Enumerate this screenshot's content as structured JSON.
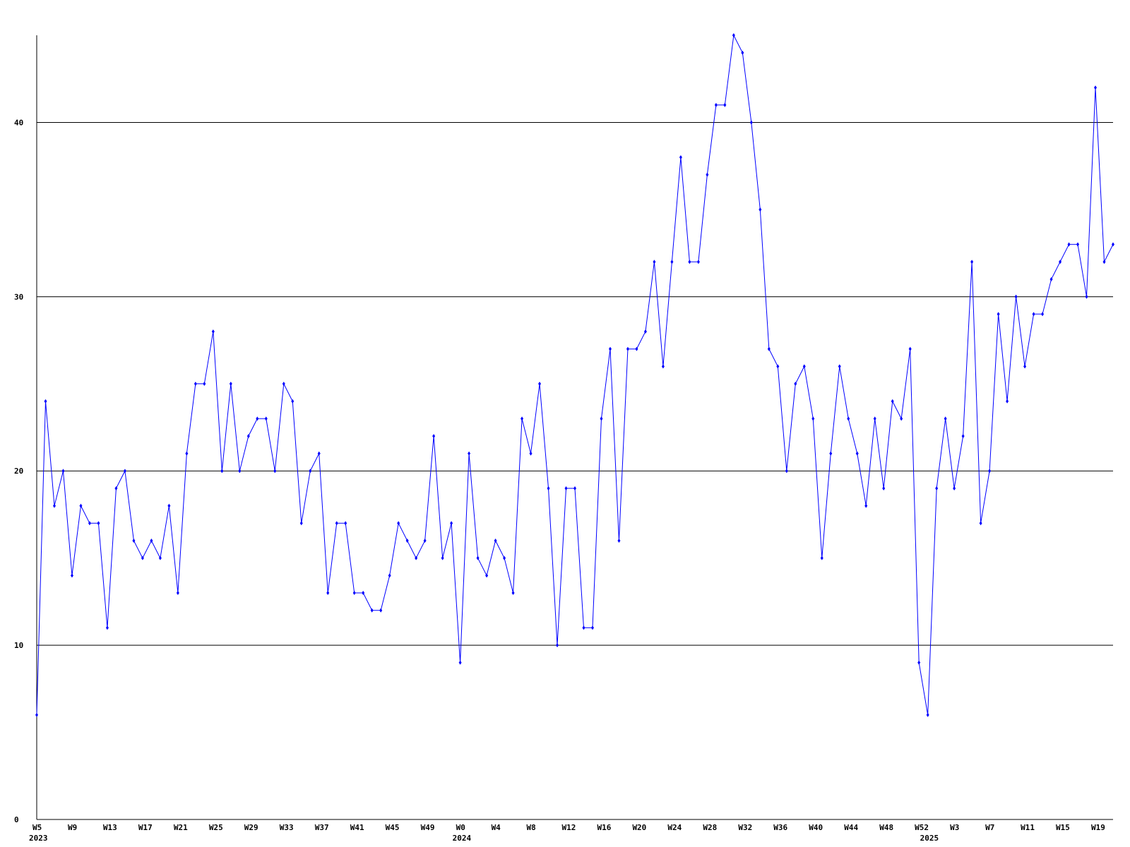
{
  "chart_data": {
    "type": "line",
    "categories": [
      "W5",
      null,
      null,
      null,
      "W9",
      null,
      null,
      null,
      "W13",
      null,
      null,
      null,
      "W17",
      null,
      null,
      null,
      "W21",
      null,
      null,
      null,
      "W25",
      null,
      null,
      null,
      "W29",
      null,
      null,
      null,
      "W33",
      null,
      null,
      null,
      "W37",
      null,
      null,
      null,
      "W41",
      null,
      null,
      null,
      "W45",
      null,
      null,
      null,
      "W49",
      null,
      null,
      null,
      "W0",
      null,
      null,
      null,
      "W4",
      null,
      null,
      null,
      "W8",
      null,
      null,
      null,
      "W12",
      null,
      null,
      null,
      "W16",
      null,
      null,
      null,
      "W20",
      null,
      null,
      null,
      "W24",
      null,
      null,
      null,
      "W28",
      null,
      null,
      null,
      "W32",
      null,
      null,
      null,
      "W36",
      null,
      null,
      null,
      "W40",
      null,
      null,
      null,
      "W44",
      null,
      null,
      null,
      "W48",
      null,
      null,
      null,
      "W52",
      null,
      null,
      null,
      "W3",
      null,
      null,
      null,
      "W7",
      null,
      null,
      null,
      "W11",
      null,
      null,
      null,
      "W15",
      null,
      null,
      null,
      "W19",
      null,
      null
    ],
    "category_years": [
      "2023",
      null,
      null,
      null,
      null,
      null,
      null,
      null,
      null,
      null,
      null,
      null,
      null,
      null,
      null,
      null,
      null,
      null,
      null,
      null,
      null,
      null,
      null,
      null,
      null,
      null,
      null,
      null,
      null,
      null,
      null,
      null,
      null,
      null,
      null,
      null,
      null,
      null,
      null,
      null,
      null,
      null,
      null,
      null,
      null,
      null,
      null,
      null,
      "2024",
      null,
      null,
      null,
      null,
      null,
      null,
      null,
      null,
      null,
      null,
      null,
      null,
      null,
      null,
      null,
      null,
      null,
      null,
      null,
      null,
      null,
      null,
      null,
      null,
      null,
      null,
      null,
      null,
      null,
      null,
      null,
      null,
      null,
      null,
      null,
      null,
      null,
      null,
      null,
      null,
      null,
      null,
      null,
      null,
      null,
      null,
      null,
      null,
      null,
      null,
      null,
      null,
      "2025",
      null,
      null,
      null,
      null,
      null,
      null,
      null,
      null,
      null,
      null,
      null,
      null,
      null,
      null,
      null,
      null,
      null,
      null,
      null,
      null,
      null
    ],
    "series": [
      {
        "color": "#0000ff",
        "values": [
          6,
          24,
          18,
          20,
          14,
          18,
          17,
          17,
          11,
          19,
          20,
          16,
          15,
          16,
          15,
          18,
          13,
          21,
          25,
          25,
          28,
          20,
          25,
          20,
          22,
          23,
          23,
          20,
          25,
          24,
          17,
          20,
          21,
          13,
          17,
          17,
          13,
          13,
          12,
          12,
          14,
          17,
          16,
          15,
          16,
          22,
          15,
          17,
          9,
          21,
          15,
          14,
          16,
          15,
          13,
          23,
          21,
          25,
          19,
          10,
          19,
          19,
          11,
          11,
          23,
          27,
          16,
          27,
          27,
          28,
          32,
          26,
          32,
          38,
          32,
          32,
          37,
          41,
          41,
          45,
          44,
          40,
          35,
          27,
          26,
          20,
          25,
          26,
          23,
          15,
          21,
          26,
          23,
          21,
          18,
          23,
          19,
          24,
          23,
          27,
          9,
          6,
          19,
          23,
          19,
          22,
          32,
          17,
          20,
          29,
          24,
          30,
          26,
          29,
          29,
          31,
          32,
          33,
          33,
          30,
          42,
          32,
          33
        ]
      }
    ],
    "ylim": [
      0,
      45
    ],
    "yticks": [
      0,
      10,
      20,
      30,
      40
    ],
    "grid": true
  }
}
